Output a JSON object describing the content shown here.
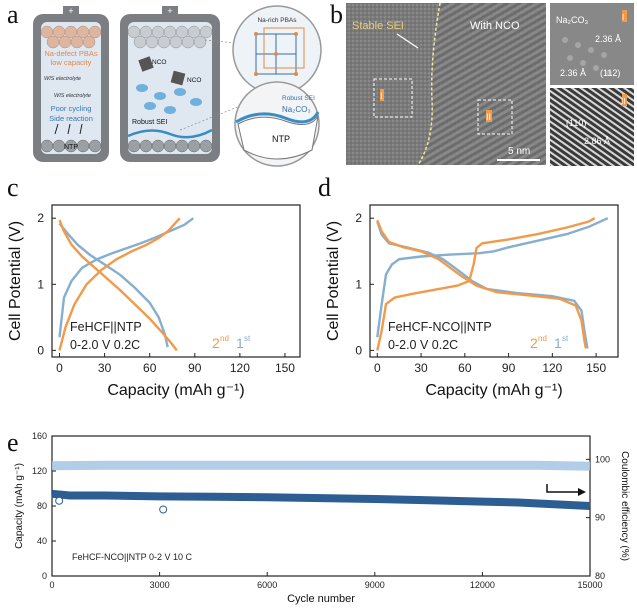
{
  "panels": {
    "a": {
      "letter": "a",
      "left_cell": {
        "terminal": "+",
        "label1": "Na-defect PBAs",
        "label2": "low capacity",
        "electrolyte1": "WIS electrolyte",
        "electrolyte2": "WIS electrolyte",
        "issue1": "Poor cycling",
        "issue2": "Side reaction",
        "anode": "NTP"
      },
      "right_cell": {
        "terminal": "+",
        "nco1": "NCO",
        "nco2": "NCO",
        "sei": "Robust SEI"
      },
      "zoom_top": {
        "label": "Na-rich PBAs"
      },
      "zoom_bottom": {
        "sei": "Robust SEI",
        "compound": "Na₂CO₃",
        "anode": "NTP"
      }
    },
    "b": {
      "letter": "b",
      "label_sei": "Stable SEI",
      "label_nco": "With NCO",
      "scale_bar": "5 nm",
      "roman1": "I",
      "roman2": "II",
      "inset1": {
        "title": "Na₂CO₃",
        "d1": "2.36 Å",
        "d2": "2.36 Å",
        "plane": "(112)",
        "roman": "I"
      },
      "inset2": {
        "plane": "(110)",
        "d": "2.86 Å",
        "roman": "II"
      }
    },
    "c": {
      "letter": "c"
    },
    "d": {
      "letter": "d"
    },
    "e": {
      "letter": "e"
    }
  },
  "colors": {
    "orange": "#F29A4A",
    "blue": "#86AFCF",
    "dark_blue": "#2C5E93",
    "light_blue": "#A9C8E6"
  },
  "chart_data": [
    {
      "id": "c",
      "type": "line",
      "title": "",
      "xlabel": "Capacity (mAh g⁻¹)",
      "ylabel": "Cell Potential (V)",
      "xlim": [
        -5,
        160
      ],
      "ylim": [
        -0.1,
        2.2
      ],
      "xticks": [
        0,
        30,
        60,
        90,
        120,
        150
      ],
      "yticks": [
        0,
        1,
        2
      ],
      "annotation1": "FeHCF||NTP",
      "annotation2": "0-2.0 V  0.2C",
      "legend": {
        "second_num": "2",
        "second_sup": "nd",
        "first_num": "1",
        "first_sup": "st"
      },
      "series": [
        {
          "name": "1st charge",
          "color": "#86AFCF",
          "points": [
            [
              0,
              0.2
            ],
            [
              3,
              0.8
            ],
            [
              8,
              1.05
            ],
            [
              15,
              1.25
            ],
            [
              25,
              1.38
            ],
            [
              35,
              1.47
            ],
            [
              45,
              1.55
            ],
            [
              55,
              1.63
            ],
            [
              65,
              1.72
            ],
            [
              75,
              1.82
            ],
            [
              83,
              1.9
            ],
            [
              89,
              2.0
            ]
          ]
        },
        {
          "name": "1st discharge",
          "color": "#86AFCF",
          "points": [
            [
              0,
              1.92
            ],
            [
              5,
              1.78
            ],
            [
              12,
              1.6
            ],
            [
              20,
              1.45
            ],
            [
              30,
              1.3
            ],
            [
              40,
              1.15
            ],
            [
              50,
              0.95
            ],
            [
              60,
              0.72
            ],
            [
              66,
              0.5
            ],
            [
              70,
              0.25
            ],
            [
              72,
              0.05
            ]
          ]
        },
        {
          "name": "2nd charge",
          "color": "#F29A4A",
          "points": [
            [
              0,
              0.0
            ],
            [
              4,
              0.35
            ],
            [
              10,
              0.7
            ],
            [
              18,
              1.0
            ],
            [
              28,
              1.22
            ],
            [
              38,
              1.38
            ],
            [
              48,
              1.5
            ],
            [
              58,
              1.6
            ],
            [
              66,
              1.7
            ],
            [
              72,
              1.8
            ],
            [
              76,
              1.9
            ],
            [
              80,
              2.0
            ]
          ]
        },
        {
          "name": "2nd discharge",
          "color": "#F29A4A",
          "points": [
            [
              0,
              1.97
            ],
            [
              3,
              1.8
            ],
            [
              8,
              1.6
            ],
            [
              15,
              1.42
            ],
            [
              22,
              1.28
            ],
            [
              30,
              1.12
            ],
            [
              40,
              0.92
            ],
            [
              50,
              0.7
            ],
            [
              60,
              0.48
            ],
            [
              68,
              0.28
            ],
            [
              74,
              0.12
            ],
            [
              78,
              0.0
            ]
          ]
        }
      ]
    },
    {
      "id": "d",
      "type": "line",
      "title": "",
      "xlabel": "Capacity (mAh g⁻¹)",
      "ylabel": "Cell Potential (V)",
      "xlim": [
        -5,
        165
      ],
      "ylim": [
        -0.1,
        2.2
      ],
      "xticks": [
        0,
        30,
        60,
        90,
        120,
        150
      ],
      "yticks": [
        0,
        1,
        2
      ],
      "annotation1": "FeHCF-NCO||NTP",
      "annotation2": "0-2.0 V  0.2C",
      "legend": {
        "second_num": "2",
        "second_sup": "nd",
        "first_num": "1",
        "first_sup": "st"
      },
      "series": [
        {
          "name": "1st charge",
          "color": "#86AFCF",
          "points": [
            [
              0,
              0.2
            ],
            [
              3,
              0.7
            ],
            [
              6,
              1.15
            ],
            [
              10,
              1.3
            ],
            [
              15,
              1.38
            ],
            [
              30,
              1.42
            ],
            [
              50,
              1.45
            ],
            [
              70,
              1.47
            ],
            [
              80,
              1.5
            ],
            [
              90,
              1.56
            ],
            [
              110,
              1.66
            ],
            [
              130,
              1.76
            ],
            [
              145,
              1.87
            ],
            [
              158,
              2.0
            ]
          ]
        },
        {
          "name": "1st discharge",
          "color": "#86AFCF",
          "points": [
            [
              0,
              1.95
            ],
            [
              3,
              1.75
            ],
            [
              8,
              1.62
            ],
            [
              20,
              1.56
            ],
            [
              35,
              1.48
            ],
            [
              45,
              1.38
            ],
            [
              55,
              1.22
            ],
            [
              65,
              1.05
            ],
            [
              75,
              0.93
            ],
            [
              95,
              0.87
            ],
            [
              120,
              0.82
            ],
            [
              135,
              0.75
            ],
            [
              140,
              0.6
            ],
            [
              142,
              0.3
            ],
            [
              144,
              0.03
            ]
          ]
        },
        {
          "name": "2nd charge",
          "color": "#F29A4A",
          "points": [
            [
              0,
              0.0
            ],
            [
              3,
              0.3
            ],
            [
              6,
              0.7
            ],
            [
              12,
              0.8
            ],
            [
              25,
              0.86
            ],
            [
              40,
              0.92
            ],
            [
              55,
              0.98
            ],
            [
              63,
              1.05
            ],
            [
              66,
              1.3
            ],
            [
              68,
              1.55
            ],
            [
              72,
              1.62
            ],
            [
              90,
              1.68
            ],
            [
              110,
              1.76
            ],
            [
              130,
              1.86
            ],
            [
              145,
              1.95
            ],
            [
              149,
              2.0
            ]
          ]
        },
        {
          "name": "2nd discharge",
          "color": "#F29A4A",
          "points": [
            [
              0,
              1.97
            ],
            [
              3,
              1.8
            ],
            [
              8,
              1.64
            ],
            [
              18,
              1.56
            ],
            [
              30,
              1.5
            ],
            [
              42,
              1.38
            ],
            [
              50,
              1.25
            ],
            [
              58,
              1.12
            ],
            [
              68,
              0.98
            ],
            [
              82,
              0.88
            ],
            [
              105,
              0.83
            ],
            [
              125,
              0.78
            ],
            [
              136,
              0.68
            ],
            [
              140,
              0.45
            ],
            [
              142,
              0.15
            ],
            [
              143,
              0.03
            ]
          ]
        }
      ]
    },
    {
      "id": "e",
      "type": "scatter",
      "title": "",
      "xlabel": "Cycle number",
      "ylabel": "Capacity (mAh g⁻¹)",
      "ylabel_right": "Coulombic efficiency (%)",
      "xlim": [
        0,
        15000
      ],
      "ylim": [
        0,
        160
      ],
      "ylim_right": [
        80,
        104
      ],
      "xticks": [
        0,
        3000,
        6000,
        9000,
        12000,
        15000
      ],
      "yticks": [
        0,
        40,
        80,
        120,
        160
      ],
      "yticks_right": [
        80,
        90,
        100
      ],
      "annotation": "FeHCF-NCO||NTP 0-2 V 10 C",
      "series": [
        {
          "name": "Coulombic efficiency",
          "axis": "right",
          "color": "#A9C8E6",
          "points": [
            [
              0,
              98.9
            ],
            [
              1500,
              99
            ],
            [
              3000,
              99
            ],
            [
              4500,
              99
            ],
            [
              6000,
              99
            ],
            [
              7500,
              99
            ],
            [
              9000,
              99
            ],
            [
              10500,
              99
            ],
            [
              12000,
              99
            ],
            [
              13500,
              99
            ],
            [
              15000,
              98.8
            ]
          ]
        },
        {
          "name": "Capacity",
          "axis": "left",
          "color": "#2C5E93",
          "points": [
            [
              0,
              94
            ],
            [
              500,
              92
            ],
            [
              1500,
              92
            ],
            [
              3000,
              91
            ],
            [
              4500,
              90.5
            ],
            [
              6000,
              90
            ],
            [
              7500,
              89
            ],
            [
              9000,
              88
            ],
            [
              10500,
              86.5
            ],
            [
              12000,
              85
            ],
            [
              13000,
              84
            ],
            [
              14000,
              82
            ],
            [
              14500,
              81
            ],
            [
              15000,
              80
            ]
          ]
        },
        {
          "name": "Outliers",
          "axis": "left",
          "color": "#2C5E93",
          "points": [
            [
              200,
              86
            ],
            [
              3100,
              76
            ]
          ]
        }
      ]
    }
  ]
}
